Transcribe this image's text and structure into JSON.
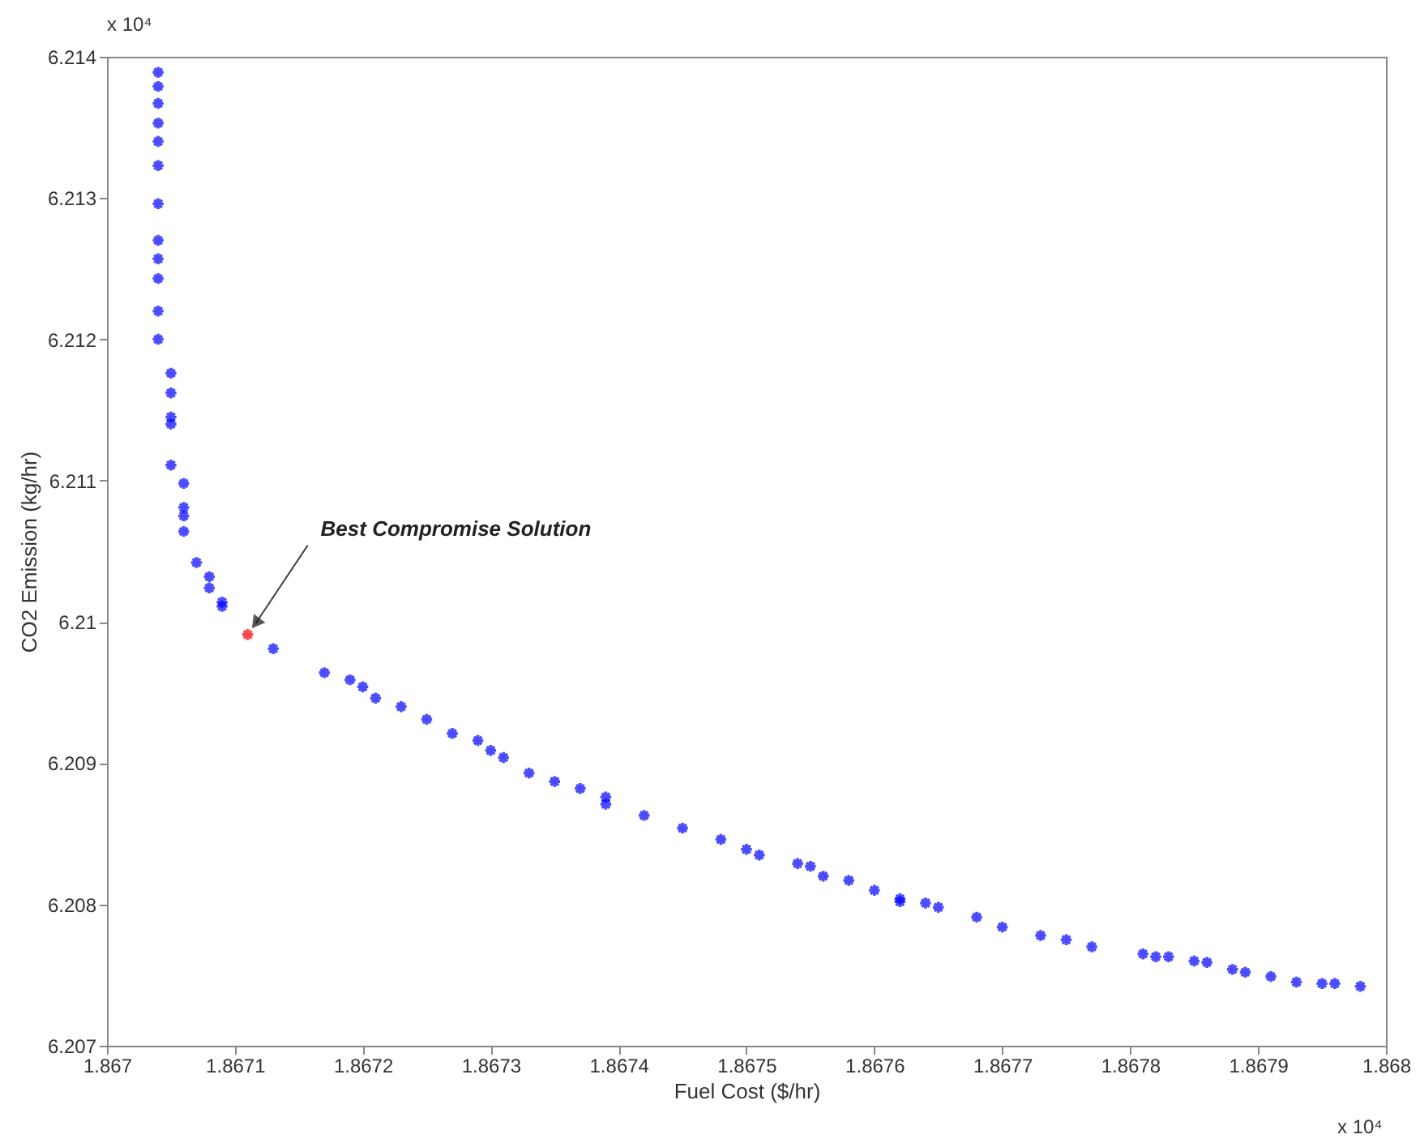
{
  "chart_data": {
    "type": "scatter",
    "xlabel": "Fuel Cost ($/hr)",
    "ylabel": "CO2 Emission (kg/hr)",
    "xlim": [
      1.867,
      1.868
    ],
    "xticks": [
      1.867,
      1.8671,
      1.8672,
      1.8673,
      1.8674,
      1.8675,
      1.8676,
      1.8677,
      1.8678,
      1.8679,
      1.868
    ],
    "ylim": [
      6.207,
      6.214
    ],
    "yticks": [
      6.207,
      6.208,
      6.209,
      6.21,
      6.211,
      6.212,
      6.213,
      6.214
    ],
    "grid": false,
    "marker": "cross",
    "annotations": [
      {
        "text": "Best Compromise Solution",
        "x": 1.86711,
        "y": 6.20991
      },
      "x 10⁴",
      "x 10⁴"
    ],
    "series": [
      {
        "color": "#0000ff",
        "x": [
          1.86704,
          1.86704,
          1.86704,
          1.86704,
          1.86704,
          1.86704,
          1.86704,
          1.86704,
          1.86704,
          1.86704,
          1.86704,
          1.86704,
          1.86705,
          1.86705,
          1.86705,
          1.86705,
          1.86705,
          1.86706,
          1.86706,
          1.86706,
          1.86706,
          1.86707,
          1.86708,
          1.86708,
          1.86709,
          1.86709,
          1.86713,
          1.86717,
          1.86719,
          1.8672,
          1.86721,
          1.86723,
          1.86725,
          1.86727,
          1.86729,
          1.8673,
          1.86731,
          1.86733,
          1.86735,
          1.86737,
          1.86739,
          1.86739,
          1.86742,
          1.86745,
          1.86748,
          1.8675,
          1.86751,
          1.86754,
          1.86755,
          1.86756,
          1.86758,
          1.8676,
          1.86762,
          1.86762,
          1.86764,
          1.86765,
          1.86768,
          1.8677,
          1.86773,
          1.86775,
          1.86777,
          1.86781,
          1.86782,
          1.86783,
          1.86785,
          1.86786,
          1.86788,
          1.86789,
          1.86791,
          1.86793,
          1.86795,
          1.86796,
          1.86798
        ],
        "values": [
          6.21389,
          6.21379,
          6.21367,
          6.21353,
          6.2134,
          6.21323,
          6.21296,
          6.2127,
          6.21257,
          6.21243,
          6.2122,
          6.212,
          6.21176,
          6.21162,
          6.21145,
          6.2114,
          6.21111,
          6.21098,
          6.21081,
          6.21075,
          6.21064,
          6.21042,
          6.21032,
          6.21024,
          6.21014,
          6.21011,
          6.20981,
          6.20964,
          6.20959,
          6.20954,
          6.20946,
          6.2094,
          6.20931,
          6.20921,
          6.20916,
          6.20909,
          6.20904,
          6.20893,
          6.20887,
          6.20882,
          6.20876,
          6.20871,
          6.20863,
          6.20854,
          6.20846,
          6.20839,
          6.20835,
          6.20829,
          6.20827,
          6.2082,
          6.20817,
          6.2081,
          6.20804,
          6.20802,
          6.20801,
          6.20798,
          6.20791,
          6.20784,
          6.20778,
          6.20775,
          6.2077,
          6.20765,
          6.20763,
          6.20763,
          6.2076,
          6.20759,
          6.20754,
          6.20752,
          6.20749,
          6.20745,
          6.20744,
          6.20744,
          6.20742
        ]
      },
      {
        "color": "#ff0000",
        "x": [
          1.86711
        ],
        "values": [
          6.20991
        ]
      }
    ]
  }
}
